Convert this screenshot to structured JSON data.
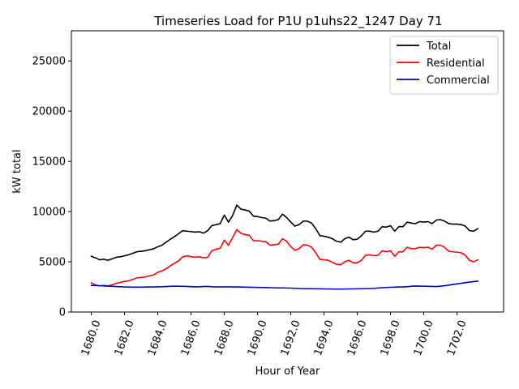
{
  "chart_data": {
    "type": "line",
    "title": "Timeseries Load for P1U p1uhs22_1247  Day 71",
    "xlabel": "Hour of Year",
    "ylabel": "kW total",
    "xlim": [
      1678.8,
      1704.8
    ],
    "ylim": [
      0,
      28000
    ],
    "xticks": [
      1680,
      1682,
      1684,
      1686,
      1688,
      1690,
      1692,
      1694,
      1696,
      1698,
      1700,
      1702
    ],
    "xtick_labels": [
      "1680.0",
      "1682.0",
      "1684.0",
      "1686.0",
      "1688.0",
      "1690.0",
      "1692.0",
      "1694.0",
      "1696.0",
      "1698.0",
      "1700.0",
      "1702.0"
    ],
    "yticks": [
      0,
      5000,
      10000,
      15000,
      20000,
      25000
    ],
    "ytick_labels": [
      "0",
      "5000",
      "10000",
      "15000",
      "20000",
      "25000"
    ],
    "legend_position": "top-right",
    "x_start": 1680,
    "x_step": 0.25,
    "series": [
      {
        "name": "Total",
        "color": "#000000",
        "values": [
          5550,
          5400,
          5200,
          5250,
          5150,
          5300,
          5450,
          5500,
          5600,
          5700,
          5850,
          6000,
          6050,
          6100,
          6200,
          6300,
          6500,
          6650,
          6950,
          7250,
          7500,
          7800,
          8100,
          8050,
          8000,
          7950,
          8000,
          7850,
          8100,
          8600,
          8700,
          8800,
          9650,
          8950,
          9600,
          10650,
          10250,
          10150,
          10050,
          9550,
          9500,
          9400,
          9350,
          9050,
          9100,
          9200,
          9750,
          9400,
          8950,
          8550,
          8700,
          9050,
          9050,
          8850,
          8300,
          7600,
          7550,
          7450,
          7300,
          7050,
          6950,
          7300,
          7450,
          7200,
          7250,
          7600,
          8050,
          8050,
          7950,
          8050,
          8500,
          8450,
          8600,
          8050,
          8500,
          8500,
          8950,
          8850,
          8800,
          9000,
          8950,
          9000,
          8800,
          9150,
          9200,
          9050,
          8800,
          8750,
          8750,
          8700,
          8550,
          8100,
          8050,
          8300
        ]
      },
      {
        "name": "Residential",
        "color": "#ff0000",
        "values": [
          2900,
          2700,
          2600,
          2650,
          2600,
          2700,
          2850,
          2950,
          3050,
          3100,
          3250,
          3400,
          3450,
          3500,
          3600,
          3700,
          3950,
          4100,
          4300,
          4600,
          4850,
          5100,
          5500,
          5600,
          5500,
          5450,
          5500,
          5400,
          5450,
          6100,
          6250,
          6350,
          7150,
          6650,
          7400,
          8200,
          7850,
          7700,
          7650,
          7100,
          7100,
          7050,
          7000,
          6650,
          6700,
          6750,
          7300,
          7050,
          6500,
          6150,
          6300,
          6700,
          6650,
          6450,
          5900,
          5250,
          5200,
          5150,
          4950,
          4750,
          4700,
          5000,
          5150,
          4900,
          4900,
          5150,
          5650,
          5700,
          5600,
          5650,
          6100,
          6000,
          6100,
          5550,
          6000,
          6000,
          6450,
          6300,
          6300,
          6450,
          6400,
          6450,
          6250,
          6650,
          6650,
          6450,
          6050,
          6000,
          5950,
          5900,
          5650,
          5150,
          5000,
          5200
        ]
      },
      {
        "name": "Commercial",
        "color": "#0000cc",
        "values": [
          2650,
          2640,
          2620,
          2600,
          2580,
          2560,
          2540,
          2520,
          2500,
          2490,
          2480,
          2480,
          2480,
          2490,
          2500,
          2500,
          2510,
          2520,
          2540,
          2560,
          2570,
          2570,
          2560,
          2550,
          2530,
          2510,
          2520,
          2540,
          2550,
          2520,
          2500,
          2500,
          2510,
          2510,
          2500,
          2500,
          2490,
          2480,
          2470,
          2460,
          2450,
          2440,
          2430,
          2420,
          2410,
          2400,
          2400,
          2390,
          2380,
          2360,
          2340,
          2330,
          2320,
          2320,
          2310,
          2310,
          2300,
          2300,
          2290,
          2280,
          2280,
          2290,
          2300,
          2300,
          2310,
          2320,
          2330,
          2340,
          2360,
          2390,
          2420,
          2440,
          2460,
          2480,
          2500,
          2500,
          2520,
          2570,
          2590,
          2580,
          2570,
          2560,
          2550,
          2540,
          2570,
          2620,
          2680,
          2740,
          2800,
          2860,
          2920,
          2980,
          3030,
          3080
        ]
      }
    ]
  }
}
